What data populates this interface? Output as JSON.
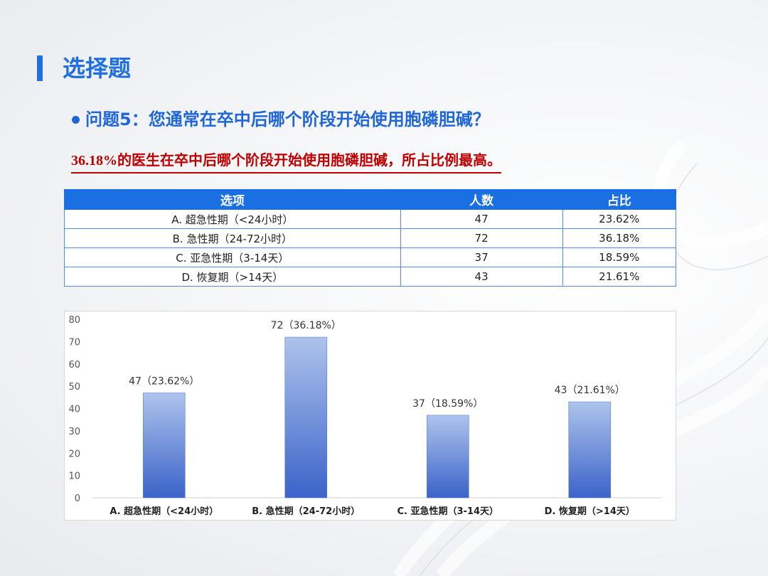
{
  "slide": {
    "title": "选择题",
    "question": "问题5：您通常在卒中后哪个阶段开始使用胞磷胆碱？",
    "highlight_number": "36.18%",
    "highlight_text": "的医生在卒中后哪个阶段开始使用胞磷胆碱，所占比例最高。"
  },
  "colors": {
    "accent": "#1f6fe0",
    "highlight": "#c00000",
    "bar_top": "#aec3ec",
    "bar_bottom": "#3b63c9"
  },
  "table": {
    "headers": [
      "选项",
      "人数",
      "占比"
    ],
    "rows": [
      [
        "A. 超急性期（<24小时）",
        "47",
        "23.62%"
      ],
      [
        "B. 急性期（24-72小时）",
        "72",
        "36.18%"
      ],
      [
        "C. 亚急性期（3-14天）",
        "37",
        "18.59%"
      ],
      [
        "D. 恢复期（>14天）",
        "43",
        "21.61%"
      ]
    ]
  },
  "chart_data": {
    "type": "bar",
    "categories": [
      "A. 超急性期（<24小时）",
      "B. 急性期（24-72小时）",
      "C. 亚急性期（3-14天）",
      "D. 恢复期（>14天）"
    ],
    "values": [
      47,
      72,
      37,
      43
    ],
    "data_labels": [
      "47（23.62%）",
      "72（36.18%）",
      "37（18.59%）",
      "43（21.61%）"
    ],
    "ylim": [
      0,
      80
    ],
    "yticks": [
      0,
      10,
      20,
      30,
      40,
      50,
      60,
      70,
      80
    ],
    "grid": false,
    "legend": "none"
  }
}
